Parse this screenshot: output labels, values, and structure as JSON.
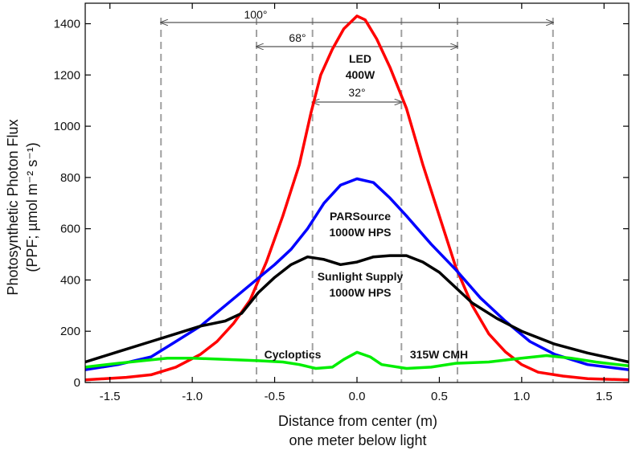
{
  "chart_data": {
    "type": "line",
    "xlabel": "Distance from center (m)",
    "xlabel2": "one meter below light",
    "ylabel_line1": "Photosynthetic Photon Flux",
    "ylabel_line2": "(PPF; µmol m⁻² s⁻¹)",
    "xlim": [
      -1.65,
      1.65
    ],
    "ylim": [
      0,
      1480
    ],
    "xticks": [
      {
        "value": -1.5,
        "label": "-1.5"
      },
      {
        "value": -1.0,
        "label": "-1.0"
      },
      {
        "value": -0.5,
        "label": "-0.5"
      },
      {
        "value": 0.0,
        "label": "0.0"
      },
      {
        "value": 0.5,
        "label": "0.5"
      },
      {
        "value": 1.0,
        "label": "1.0"
      },
      {
        "value": 1.5,
        "label": "1.5"
      }
    ],
    "yticks": [
      {
        "value": 0,
        "label": "0"
      },
      {
        "value": 200,
        "label": "200"
      },
      {
        "value": 400,
        "label": "400"
      },
      {
        "value": 600,
        "label": "600"
      },
      {
        "value": 800,
        "label": "800"
      },
      {
        "value": 1000,
        "label": "1000"
      },
      {
        "value": 1200,
        "label": "1200"
      },
      {
        "value": 1400,
        "label": "1400"
      }
    ],
    "series": [
      {
        "id": "led",
        "color": "#ff0000",
        "points": [
          [
            -1.65,
            10
          ],
          [
            -1.4,
            20
          ],
          [
            -1.25,
            30
          ],
          [
            -1.1,
            60
          ],
          [
            -0.95,
            110
          ],
          [
            -0.85,
            160
          ],
          [
            -0.75,
            230
          ],
          [
            -0.65,
            320
          ],
          [
            -0.55,
            470
          ],
          [
            -0.45,
            650
          ],
          [
            -0.35,
            850
          ],
          [
            -0.28,
            1050
          ],
          [
            -0.22,
            1200
          ],
          [
            -0.15,
            1300
          ],
          [
            -0.08,
            1380
          ],
          [
            0.0,
            1430
          ],
          [
            0.05,
            1415
          ],
          [
            0.12,
            1340
          ],
          [
            0.2,
            1230
          ],
          [
            0.3,
            1070
          ],
          [
            0.4,
            850
          ],
          [
            0.5,
            650
          ],
          [
            0.6,
            450
          ],
          [
            0.7,
            300
          ],
          [
            0.8,
            190
          ],
          [
            0.9,
            120
          ],
          [
            1.0,
            70
          ],
          [
            1.1,
            40
          ],
          [
            1.25,
            25
          ],
          [
            1.4,
            15
          ],
          [
            1.65,
            10
          ]
        ]
      },
      {
        "id": "parsource",
        "color": "#0000ff",
        "points": [
          [
            -1.65,
            50
          ],
          [
            -1.45,
            70
          ],
          [
            -1.25,
            100
          ],
          [
            -1.1,
            160
          ],
          [
            -0.95,
            220
          ],
          [
            -0.8,
            300
          ],
          [
            -0.65,
            380
          ],
          [
            -0.5,
            460
          ],
          [
            -0.4,
            520
          ],
          [
            -0.3,
            600
          ],
          [
            -0.2,
            700
          ],
          [
            -0.1,
            770
          ],
          [
            0.0,
            795
          ],
          [
            0.1,
            780
          ],
          [
            0.2,
            720
          ],
          [
            0.3,
            650
          ],
          [
            0.45,
            540
          ],
          [
            0.6,
            440
          ],
          [
            0.75,
            330
          ],
          [
            0.9,
            240
          ],
          [
            1.05,
            160
          ],
          [
            1.2,
            110
          ],
          [
            1.4,
            70
          ],
          [
            1.65,
            50
          ]
        ]
      },
      {
        "id": "sunlight",
        "color": "#000000",
        "points": [
          [
            -1.65,
            80
          ],
          [
            -1.45,
            120
          ],
          [
            -1.25,
            160
          ],
          [
            -1.1,
            190
          ],
          [
            -0.95,
            220
          ],
          [
            -0.8,
            240
          ],
          [
            -0.7,
            270
          ],
          [
            -0.6,
            350
          ],
          [
            -0.5,
            410
          ],
          [
            -0.4,
            460
          ],
          [
            -0.3,
            490
          ],
          [
            -0.2,
            480
          ],
          [
            -0.1,
            460
          ],
          [
            0.0,
            470
          ],
          [
            0.1,
            490
          ],
          [
            0.2,
            495
          ],
          [
            0.3,
            495
          ],
          [
            0.4,
            470
          ],
          [
            0.5,
            430
          ],
          [
            0.6,
            370
          ],
          [
            0.7,
            310
          ],
          [
            0.85,
            250
          ],
          [
            1.0,
            200
          ],
          [
            1.2,
            150
          ],
          [
            1.4,
            115
          ],
          [
            1.65,
            80
          ]
        ]
      },
      {
        "id": "cycloptics",
        "color": "#00ee00",
        "points": [
          [
            -1.65,
            60
          ],
          [
            -1.45,
            75
          ],
          [
            -1.3,
            85
          ],
          [
            -1.15,
            95
          ],
          [
            -1.0,
            95
          ],
          [
            -0.8,
            90
          ],
          [
            -0.6,
            85
          ],
          [
            -0.45,
            80
          ],
          [
            -0.35,
            70
          ],
          [
            -0.25,
            55
          ],
          [
            -0.15,
            60
          ],
          [
            -0.08,
            90
          ],
          [
            0.0,
            118
          ],
          [
            0.08,
            100
          ],
          [
            0.15,
            70
          ],
          [
            0.3,
            55
          ],
          [
            0.45,
            60
          ],
          [
            0.6,
            75
          ],
          [
            0.8,
            80
          ],
          [
            1.0,
            95
          ],
          [
            1.15,
            105
          ],
          [
            1.3,
            95
          ],
          [
            1.45,
            80
          ],
          [
            1.65,
            65
          ]
        ]
      }
    ],
    "vlines": [
      -1.19,
      -0.61,
      -0.27,
      0.27,
      0.61,
      1.19
    ],
    "annotations": {
      "angle_100": "100°",
      "angle_68": "68°",
      "angle_32": "32°",
      "led_line1": "LED",
      "led_line2": "400W",
      "parsource_line1": "PARSource",
      "parsource_line2": "1000W HPS",
      "sunlight_line1": "Sunlight Supply",
      "sunlight_line2": "1000W HPS",
      "cycloptics": "Cycloptics",
      "cmh": "315W CMH"
    }
  }
}
